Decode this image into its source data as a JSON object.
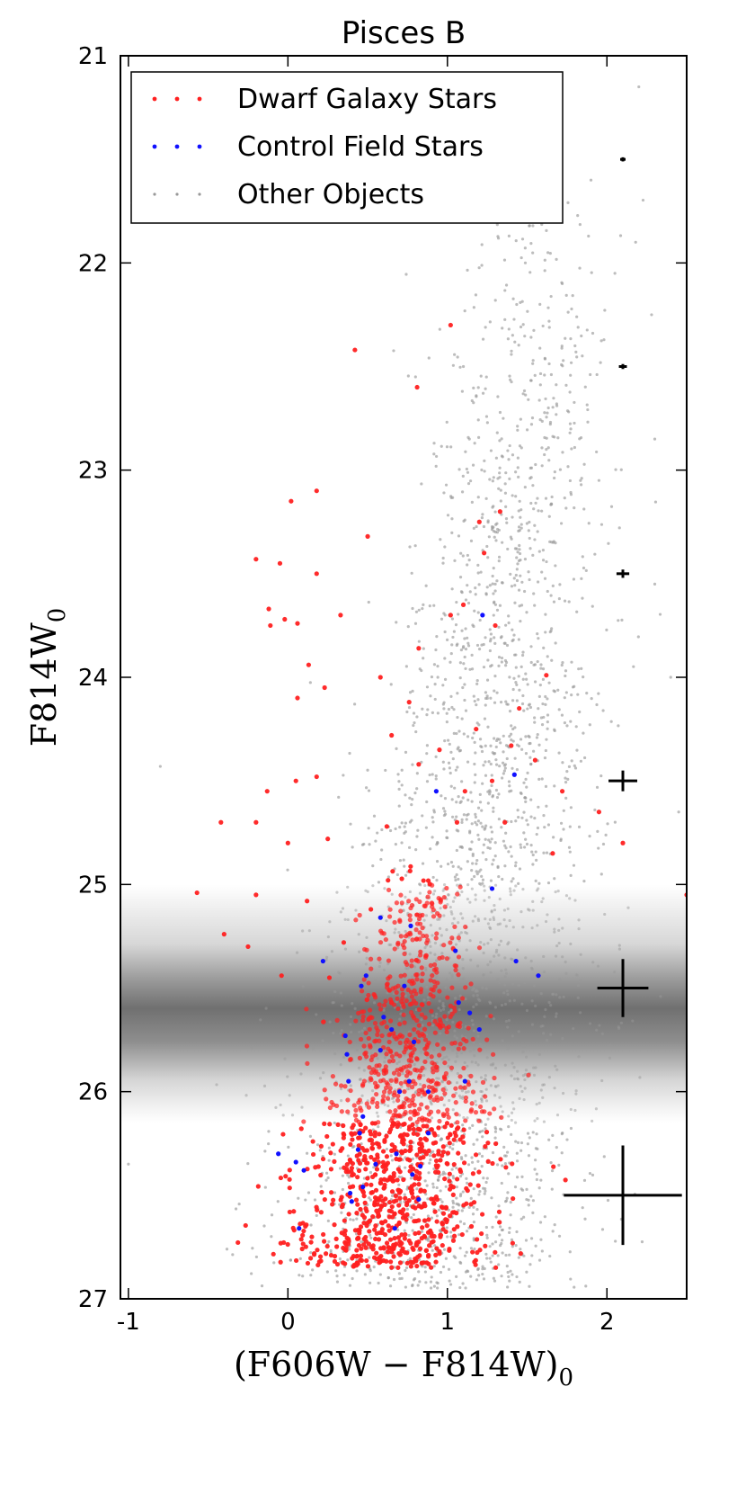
{
  "chart_data": {
    "type": "scatter",
    "title": "Pisces B",
    "xlabel_main": "(F606W − F814W)",
    "xlabel_sub": "0",
    "ylabel_main": "F814W",
    "ylabel_sub": "0",
    "xlim": [
      -1.05,
      2.5
    ],
    "ylim": [
      27,
      21
    ],
    "y_inverted": true,
    "x_ticks": [
      -1,
      0,
      1,
      2
    ],
    "x_tick_labels": [
      "-1",
      "0",
      "1",
      "2"
    ],
    "y_ticks": [
      21,
      22,
      23,
      24,
      25,
      26,
      27
    ],
    "y_tick_labels": [
      "21",
      "22",
      "23",
      "24",
      "25",
      "26",
      "27"
    ],
    "grid": false,
    "legend": {
      "position": "top-left",
      "entries": [
        {
          "label": "Dwarf Galaxy Stars",
          "color": "#ff2020"
        },
        {
          "label": "Control Field Stars",
          "color": "#1010ff"
        },
        {
          "label": "Other Objects",
          "color": "#999999"
        }
      ]
    },
    "completeness_band": {
      "y_range": [
        25.0,
        26.15
      ],
      "center": 25.6,
      "color": "#555555"
    },
    "error_bars": [
      {
        "x": 2.1,
        "y": 21.5,
        "xerr": 0.015,
        "yerr": 0.01
      },
      {
        "x": 2.1,
        "y": 22.5,
        "xerr": 0.025,
        "yerr": 0.012
      },
      {
        "x": 2.1,
        "y": 23.5,
        "xerr": 0.04,
        "yerr": 0.02
      },
      {
        "x": 2.1,
        "y": 24.5,
        "xerr": 0.09,
        "yerr": 0.05
      },
      {
        "x": 2.1,
        "y": 25.5,
        "xerr": 0.16,
        "yerr": 0.14
      },
      {
        "x": 2.1,
        "y": 26.5,
        "xerr": 0.37,
        "yerr": 0.24
      }
    ],
    "series": [
      {
        "name": "Dwarf Galaxy Stars",
        "color": "#ff2020",
        "points": [
          [
            1.02,
            22.3
          ],
          [
            0.42,
            22.42
          ],
          [
            0.81,
            22.6
          ],
          [
            0.02,
            23.15
          ],
          [
            0.18,
            23.1
          ],
          [
            1.2,
            23.25
          ],
          [
            1.33,
            23.2
          ],
          [
            0.5,
            23.32
          ],
          [
            1.23,
            23.4
          ],
          [
            -0.2,
            23.43
          ],
          [
            -0.05,
            23.45
          ],
          [
            0.18,
            23.5
          ],
          [
            -0.12,
            23.67
          ],
          [
            0.33,
            23.7
          ],
          [
            -0.02,
            23.72
          ],
          [
            0.06,
            23.74
          ],
          [
            1.1,
            23.65
          ],
          [
            1.02,
            23.7
          ],
          [
            -0.11,
            23.75
          ],
          [
            0.82,
            23.86
          ],
          [
            1.3,
            23.75
          ],
          [
            0.13,
            23.94
          ],
          [
            0.06,
            24.1
          ],
          [
            0.23,
            24.05
          ],
          [
            1.62,
            23.99
          ],
          [
            0.58,
            24.0
          ],
          [
            0.76,
            24.12
          ],
          [
            1.45,
            24.15
          ],
          [
            1.18,
            24.25
          ],
          [
            0.65,
            24.28
          ],
          [
            1.4,
            24.33
          ],
          [
            0.95,
            24.35
          ],
          [
            0.82,
            24.42
          ],
          [
            -0.13,
            24.55
          ],
          [
            0.05,
            24.5
          ],
          [
            0.18,
            24.48
          ],
          [
            1.11,
            24.55
          ],
          [
            1.28,
            24.5
          ],
          [
            1.55,
            24.4
          ],
          [
            1.72,
            24.55
          ],
          [
            1.95,
            24.65
          ],
          [
            2.1,
            24.8
          ],
          [
            -0.2,
            24.7
          ],
          [
            -0.42,
            24.7
          ],
          [
            0.0,
            24.8
          ],
          [
            0.25,
            24.78
          ],
          [
            0.62,
            24.72
          ],
          [
            1.06,
            24.7
          ],
          [
            1.36,
            24.7
          ],
          [
            1.66,
            24.85
          ],
          [
            -0.57,
            25.04
          ],
          [
            -0.4,
            25.24
          ],
          [
            -0.25,
            25.3
          ],
          [
            -0.2,
            25.05
          ],
          [
            2.5,
            25.05
          ],
          [
            0.12,
            25.08
          ],
          [
            0.52,
            25.12
          ],
          [
            0.35,
            25.28
          ],
          [
            -0.04,
            25.44
          ],
          [
            0.26,
            25.45
          ]
        ],
        "cluster": {
          "x_center": 0.72,
          "x_sd": 0.32,
          "y_min": 24.9,
          "y_max": 26.85,
          "count": 1240,
          "tilt": 0.18
        }
      },
      {
        "name": "Control Field Stars",
        "color": "#1010ff",
        "points": [
          [
            1.22,
            23.7
          ],
          [
            1.42,
            24.47
          ],
          [
            0.93,
            24.55
          ],
          [
            1.28,
            25.02
          ],
          [
            0.58,
            25.16
          ],
          [
            0.77,
            25.2
          ],
          [
            0.22,
            25.37
          ],
          [
            1.05,
            25.32
          ],
          [
            1.43,
            25.37
          ],
          [
            1.57,
            25.44
          ],
          [
            0.49,
            25.44
          ],
          [
            0.46,
            25.49
          ],
          [
            0.73,
            25.49
          ],
          [
            1.07,
            25.57
          ],
          [
            1.14,
            25.62
          ],
          [
            0.6,
            25.64
          ],
          [
            0.65,
            25.7
          ],
          [
            0.36,
            25.73
          ],
          [
            1.2,
            25.7
          ],
          [
            0.79,
            25.76
          ],
          [
            0.58,
            25.8
          ],
          [
            0.37,
            25.82
          ],
          [
            0.38,
            25.95
          ],
          [
            0.76,
            25.95
          ],
          [
            1.11,
            25.95
          ],
          [
            0.7,
            26.0
          ],
          [
            0.88,
            26.0
          ],
          [
            0.47,
            26.12
          ],
          [
            0.88,
            26.2
          ],
          [
            0.45,
            26.2
          ],
          [
            -0.06,
            26.3
          ],
          [
            0.44,
            26.28
          ],
          [
            0.68,
            26.3
          ],
          [
            0.05,
            26.34
          ],
          [
            0.55,
            26.35
          ],
          [
            0.47,
            26.46
          ],
          [
            0.1,
            26.38
          ],
          [
            0.83,
            26.36
          ],
          [
            0.78,
            26.4
          ],
          [
            0.39,
            26.49
          ],
          [
            0.4,
            26.53
          ],
          [
            0.82,
            26.52
          ],
          [
            0.67,
            26.66
          ],
          [
            0.07,
            26.66
          ]
        ]
      },
      {
        "name": "Other Objects",
        "color": "#999999",
        "points": [
          [
            1.0,
            21.0
          ],
          [
            1.45,
            21.3
          ],
          [
            2.2,
            21.15
          ],
          [
            1.9,
            21.6
          ],
          [
            2.18,
            21.9
          ],
          [
            1.63,
            21.95
          ],
          [
            2.05,
            22.05
          ],
          [
            1.58,
            22.2
          ],
          [
            1.72,
            22.1
          ],
          [
            2.28,
            22.25
          ],
          [
            1.1,
            22.5
          ],
          [
            0.8,
            22.55
          ],
          [
            1.8,
            22.4
          ],
          [
            2.3,
            22.85
          ],
          [
            1.62,
            22.9
          ],
          [
            1.95,
            23.05
          ],
          [
            -0.8,
            24.43
          ],
          [
            -1.0,
            26.35
          ],
          [
            2.45,
            24.65
          ],
          [
            2.4,
            24.0
          ],
          [
            2.3,
            23.55
          ]
        ],
        "cluster": {
          "x_center": 0.98,
          "x_sd": 0.48,
          "y_min": 21.6,
          "y_max": 26.95,
          "count": 2600,
          "tilt": 0.25
        }
      }
    ]
  }
}
